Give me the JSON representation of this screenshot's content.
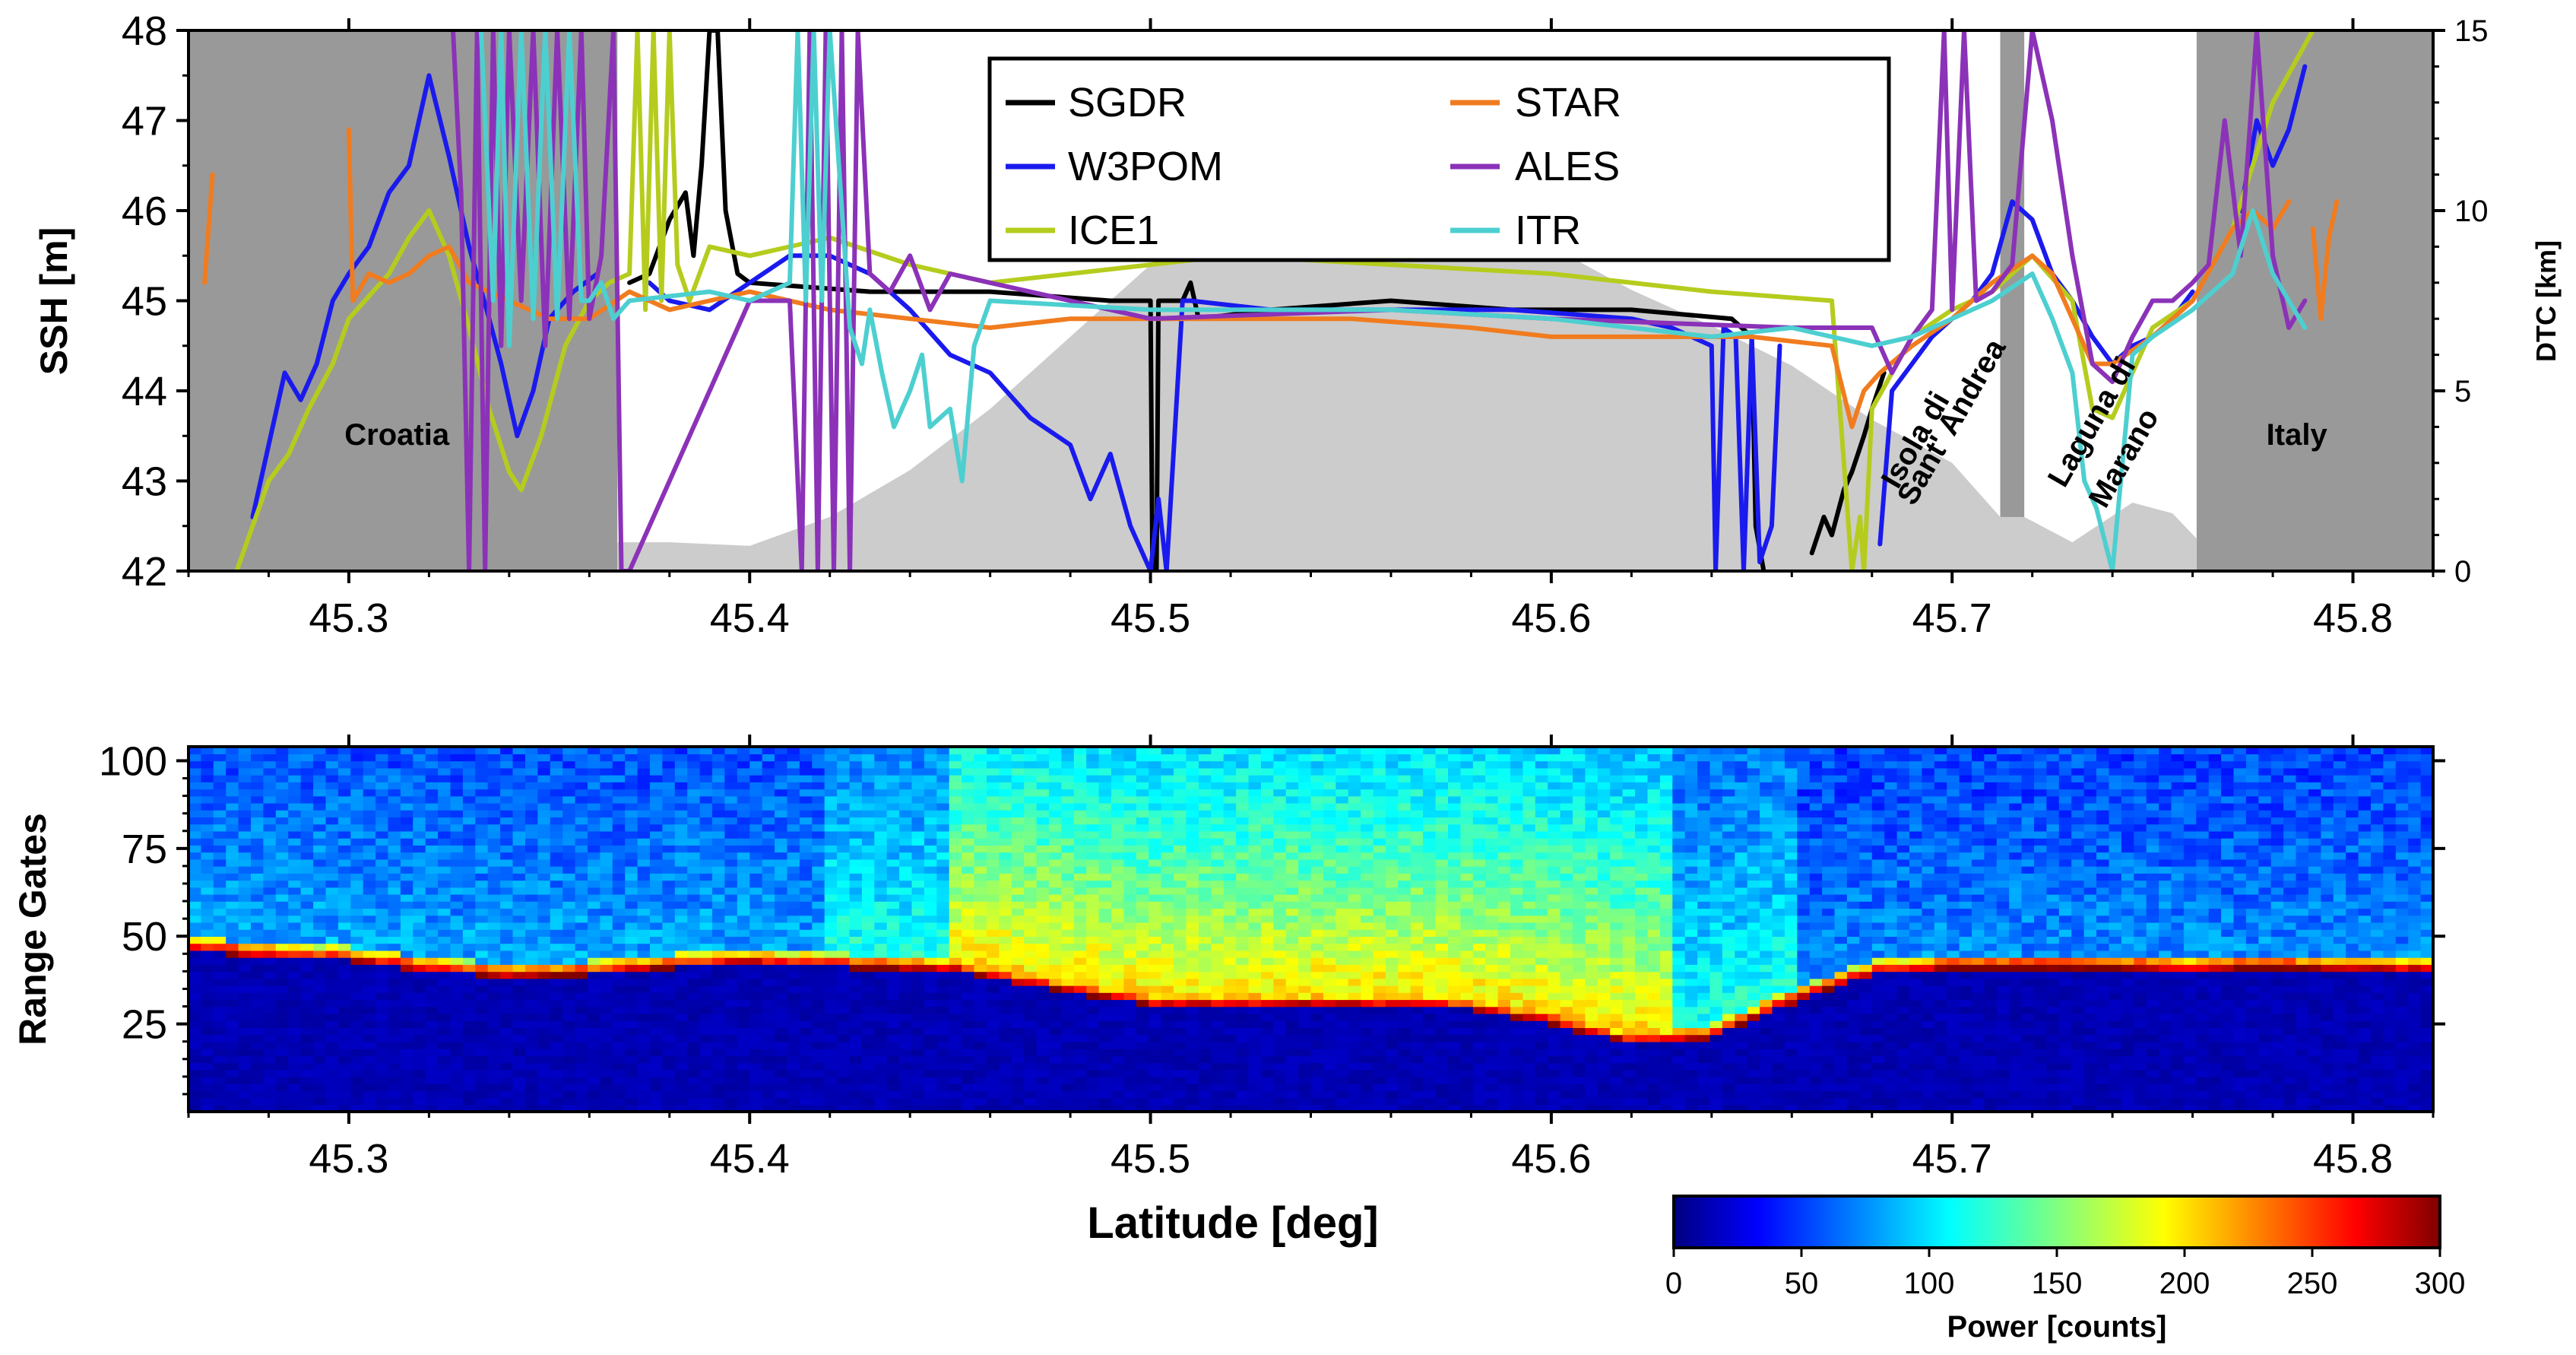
{
  "chart_data": [
    {
      "type": "line",
      "ylabel": "SSH [m]",
      "y2label": "DTC [km]",
      "xlim": [
        45.26,
        45.82
      ],
      "ylim": [
        42,
        48
      ],
      "y2lim": [
        0,
        15
      ],
      "xticks": [
        45.3,
        45.4,
        45.5,
        45.6,
        45.7,
        45.8
      ],
      "xtick_labels": [
        "45.3",
        "45.4",
        "45.5",
        "45.6",
        "45.7",
        "45.8"
      ],
      "yticks": [
        42,
        43,
        44,
        45,
        46,
        47,
        48
      ],
      "ytick_labels": [
        "42",
        "43",
        "44",
        "45",
        "46",
        "47",
        "48"
      ],
      "y2ticks": [
        0,
        5,
        10,
        15
      ],
      "y2tick_labels": [
        "0",
        "5",
        "10",
        "15"
      ],
      "legend_position": "top-center",
      "land_regions": [
        [
          45.26,
          45.367
        ],
        [
          45.712,
          45.718
        ],
        [
          45.761,
          45.82
        ]
      ],
      "annotations": [
        {
          "text": "Croatia",
          "x": 45.312,
          "y": 43.4,
          "rotate": 0
        },
        {
          "text": "Italy",
          "x": 45.786,
          "y": 43.4,
          "rotate": 0
        },
        {
          "text": "Isola di",
          "x": 45.693,
          "y": 43.4,
          "rotate": -60
        },
        {
          "text": "Sant' Andrea",
          "x": 45.702,
          "y": 43.6,
          "rotate": -60
        },
        {
          "text": "Laguna di",
          "x": 45.737,
          "y": 43.6,
          "rotate": -60
        },
        {
          "text": "Marano",
          "x": 45.745,
          "y": 43.2,
          "rotate": -60
        }
      ],
      "dtc": {
        "name": "DTC",
        "color": "#cccccc",
        "x": [
          45.367,
          45.38,
          45.4,
          45.42,
          45.44,
          45.46,
          45.48,
          45.5,
          45.52,
          45.54,
          45.55,
          45.56,
          45.58,
          45.6,
          45.62,
          45.64,
          45.66,
          45.68,
          45.7,
          45.712,
          45.718,
          45.73,
          45.745,
          45.755,
          45.761
        ],
        "values": [
          0.8,
          0.8,
          0.7,
          1.5,
          2.8,
          4.5,
          6.5,
          8.5,
          10.3,
          11.8,
          11.9,
          11.6,
          10.4,
          9.0,
          7.8,
          6.8,
          5.7,
          4.2,
          3.0,
          1.5,
          1.5,
          0.8,
          1.9,
          1.6,
          0.9
        ]
      },
      "series": [
        {
          "name": "SGDR",
          "color": "#000000",
          "x": [
            45.37,
            45.375,
            45.38,
            45.384,
            45.386,
            45.388,
            45.39,
            45.392,
            45.394,
            45.397,
            45.4,
            45.43,
            45.46,
            45.49,
            45.5,
            45.5005,
            45.5015,
            45.502,
            45.508,
            45.51,
            45.512,
            45.53,
            45.56,
            45.59,
            45.62,
            45.645,
            45.65,
            45.651,
            45.653,
            null,
            45.665,
            45.668,
            45.67,
            45.673,
            45.675,
            45.678,
            45.68,
            45.683
          ],
          "values": [
            45.2,
            45.3,
            45.9,
            46.2,
            45.5,
            46.5,
            48.0,
            48.0,
            46.0,
            45.3,
            45.2,
            45.1,
            45.1,
            45.0,
            45.0,
            42.0,
            42.0,
            45.0,
            45.0,
            45.2,
            44.8,
            44.9,
            45.0,
            44.9,
            44.9,
            44.8,
            44.6,
            42.5,
            42.0,
            null,
            42.2,
            42.6,
            42.4,
            42.9,
            43.1,
            43.5,
            43.8,
            44.2
          ]
        },
        {
          "name": "W3POM",
          "color": "#1a1aee",
          "x": [
            45.276,
            45.284,
            45.288,
            45.292,
            45.296,
            45.3,
            45.305,
            45.31,
            45.315,
            45.32,
            45.325,
            45.33,
            45.335,
            45.338,
            45.342,
            45.346,
            45.35,
            45.356,
            45.362,
            null,
            45.375,
            45.38,
            45.39,
            45.4,
            45.41,
            45.42,
            45.43,
            45.44,
            45.45,
            45.46,
            45.47,
            45.48,
            45.485,
            45.49,
            45.495,
            45.5,
            45.502,
            45.504,
            45.508,
            45.51,
            45.53,
            45.56,
            45.59,
            45.62,
            45.63,
            45.64,
            45.641,
            45.643,
            45.646,
            45.648,
            45.65,
            45.652,
            45.655,
            45.657,
            null,
            45.682,
            45.685,
            45.69,
            45.695,
            45.7,
            45.705,
            45.71,
            45.715,
            45.72,
            45.725,
            45.73,
            45.735,
            45.74,
            45.745,
            45.75,
            45.755,
            45.76,
            null,
            45.772,
            45.776,
            45.78,
            45.784,
            45.788
          ],
          "values": [
            42.6,
            44.2,
            43.9,
            44.3,
            45.0,
            45.3,
            45.6,
            46.2,
            46.5,
            47.5,
            46.6,
            45.6,
            44.8,
            44.3,
            43.5,
            44.0,
            44.8,
            45.1,
            45.3,
            null,
            45.2,
            45.0,
            44.9,
            45.2,
            45.5,
            45.5,
            45.3,
            44.9,
            44.4,
            44.2,
            43.7,
            43.4,
            42.8,
            43.3,
            42.5,
            42.0,
            42.8,
            42.0,
            45.0,
            45.0,
            44.9,
            44.9,
            44.9,
            44.8,
            44.7,
            44.5,
            42.0,
            44.7,
            44.6,
            42.0,
            44.6,
            42.1,
            42.5,
            44.5,
            null,
            42.3,
            44.0,
            44.3,
            44.6,
            44.8,
            45.0,
            45.3,
            46.1,
            45.9,
            45.3,
            45.0,
            44.6,
            44.3,
            44.5,
            44.6,
            44.8,
            45.1,
            null,
            46.0,
            47.0,
            46.5,
            46.9,
            47.6
          ]
        },
        {
          "name": "ICE1",
          "color": "#b5cc1e",
          "x": [
            45.272,
            45.28,
            45.285,
            45.29,
            45.296,
            45.3,
            45.31,
            45.315,
            45.32,
            45.325,
            45.33,
            45.335,
            45.34,
            45.343,
            45.348,
            45.354,
            45.36,
            45.365,
            45.37,
            45.372,
            45.374,
            45.376,
            45.378,
            45.38,
            45.382,
            45.385,
            45.39,
            45.4,
            45.42,
            45.44,
            45.46,
            45.48,
            45.5,
            45.52,
            45.56,
            45.6,
            45.64,
            45.67,
            45.675,
            45.677,
            45.678,
            45.68,
            45.685,
            45.69,
            45.7,
            45.71,
            45.72,
            45.73,
            45.735,
            45.74,
            45.75,
            45.76,
            45.77,
            45.78,
            45.79
          ],
          "values": [
            42.0,
            43.0,
            43.3,
            43.8,
            44.3,
            44.8,
            45.3,
            45.7,
            46.0,
            45.5,
            44.7,
            43.8,
            43.1,
            42.9,
            43.5,
            44.5,
            45.0,
            45.2,
            45.3,
            48.0,
            44.9,
            48.0,
            45.0,
            48.0,
            45.4,
            45.0,
            45.6,
            45.5,
            45.7,
            45.4,
            45.2,
            45.3,
            45.4,
            45.5,
            45.4,
            45.3,
            45.1,
            45.0,
            42.0,
            42.6,
            42.0,
            43.8,
            44.2,
            44.6,
            44.9,
            45.1,
            45.5,
            45.0,
            43.8,
            43.7,
            44.7,
            45.0,
            45.8,
            47.2,
            48.0
          ]
        },
        {
          "name": "STAR",
          "color": "#f07c1f",
          "x": [
            45.264,
            45.266,
            null,
            45.3,
            45.301,
            45.305,
            45.31,
            45.315,
            45.32,
            45.325,
            45.33,
            45.34,
            45.35,
            45.36,
            45.37,
            45.38,
            45.39,
            45.4,
            45.42,
            45.44,
            45.46,
            45.48,
            45.5,
            45.52,
            45.55,
            45.58,
            45.6,
            45.62,
            45.65,
            45.67,
            45.675,
            45.678,
            45.682,
            45.69,
            45.7,
            45.71,
            45.72,
            45.725,
            45.73,
            45.735,
            45.74,
            45.75,
            45.76,
            45.77,
            45.775,
            45.78,
            45.784,
            null,
            45.79,
            45.792,
            45.794,
            45.796
          ],
          "values": [
            45.2,
            46.4,
            null,
            46.9,
            45.0,
            45.3,
            45.2,
            45.3,
            45.5,
            45.6,
            45.2,
            45.0,
            44.8,
            44.8,
            45.1,
            44.9,
            45.0,
            45.1,
            44.9,
            44.8,
            44.7,
            44.8,
            44.8,
            44.8,
            44.8,
            44.7,
            44.6,
            44.6,
            44.6,
            44.5,
            43.6,
            44.0,
            44.2,
            44.5,
            44.8,
            45.2,
            45.5,
            45.3,
            44.8,
            44.3,
            44.3,
            44.6,
            45.0,
            45.8,
            46.0,
            45.8,
            46.1,
            null,
            45.8,
            44.8,
            45.7,
            46.1
          ]
        },
        {
          "name": "ALES",
          "color": "#8b32b8",
          "x": [
            45.326,
            45.328,
            45.33,
            45.332,
            45.334,
            45.336,
            45.338,
            45.34,
            45.343,
            45.346,
            45.349,
            45.352,
            45.355,
            45.358,
            45.36,
            45.363,
            45.366,
            45.368,
            45.37,
            45.4,
            45.41,
            45.413,
            45.415,
            45.417,
            45.419,
            45.421,
            45.423,
            45.425,
            45.427,
            45.43,
            45.435,
            45.44,
            45.445,
            45.45,
            45.5,
            45.56,
            45.6,
            45.66,
            45.68,
            45.685,
            45.69,
            45.695,
            45.698,
            45.7,
            45.703,
            45.706,
            45.71,
            45.715,
            45.72,
            45.725,
            45.73,
            45.735,
            45.74,
            45.745,
            45.75,
            45.755,
            45.76,
            45.764,
            45.768,
            45.772,
            45.776,
            45.78,
            45.784,
            45.788
          ],
          "values": [
            48.0,
            46.2,
            42.0,
            48.0,
            42.0,
            48.0,
            44.5,
            48.0,
            45.0,
            48.0,
            44.5,
            48.0,
            44.8,
            48.0,
            44.8,
            45.5,
            48.0,
            42.0,
            42.0,
            45.0,
            45.0,
            42.0,
            48.0,
            42.0,
            48.0,
            42.0,
            48.0,
            42.0,
            48.0,
            45.3,
            45.1,
            45.5,
            44.9,
            45.3,
            44.8,
            44.9,
            44.8,
            44.7,
            44.7,
            44.2,
            44.6,
            44.9,
            48.0,
            44.9,
            48.0,
            45.0,
            45.1,
            45.4,
            48.0,
            47.0,
            45.5,
            44.3,
            44.1,
            44.6,
            45.0,
            45.0,
            45.2,
            45.4,
            47.0,
            45.5,
            48.0,
            45.5,
            44.7,
            45.0
          ]
        },
        {
          "name": "ITR",
          "color": "#4dcfd0",
          "x": [
            45.333,
            45.336,
            45.338,
            45.34,
            45.343,
            45.346,
            45.349,
            45.352,
            45.355,
            45.358,
            45.36,
            45.363,
            45.366,
            45.37,
            45.39,
            45.4,
            45.41,
            45.412,
            45.414,
            45.416,
            45.418,
            45.42,
            45.425,
            45.428,
            45.43,
            45.433,
            45.436,
            45.44,
            45.443,
            45.445,
            45.45,
            45.453,
            45.456,
            45.46,
            45.5,
            45.56,
            45.6,
            45.64,
            45.66,
            45.68,
            45.69,
            45.7,
            45.71,
            45.72,
            45.725,
            45.73,
            45.733,
            45.736,
            45.74,
            45.745,
            45.75,
            45.76,
            45.77,
            45.775,
            45.78,
            45.784,
            45.788
          ],
          "values": [
            48.0,
            45.0,
            48.0,
            44.5,
            48.0,
            44.8,
            48.0,
            44.8,
            48.0,
            45.0,
            45.0,
            45.2,
            44.8,
            45.0,
            45.1,
            45.0,
            45.2,
            48.0,
            45.0,
            48.0,
            45.0,
            48.0,
            44.7,
            44.3,
            44.9,
            44.2,
            43.6,
            44.0,
            44.4,
            43.6,
            43.8,
            43.0,
            44.5,
            45.0,
            44.9,
            44.9,
            44.8,
            44.6,
            44.7,
            44.5,
            44.6,
            44.8,
            45.0,
            45.3,
            44.8,
            44.2,
            43.0,
            42.7,
            42.0,
            44.4,
            44.6,
            44.9,
            45.3,
            46.0,
            45.3,
            45.0,
            44.7
          ]
        }
      ]
    },
    {
      "type": "heatmap",
      "ylabel": "Range Gates",
      "xlabel": "Latitude [deg]",
      "xlim": [
        45.26,
        45.82
      ],
      "ylim": [
        0,
        104
      ],
      "xticks": [
        45.3,
        45.4,
        45.5,
        45.6,
        45.7,
        45.8
      ],
      "xtick_labels": [
        "45.3",
        "45.4",
        "45.5",
        "45.6",
        "45.7",
        "45.8"
      ],
      "yticks": [
        25,
        50,
        75,
        100
      ],
      "ytick_labels": [
        "25",
        "50",
        "75",
        "100"
      ],
      "colorbar": {
        "label": "Power [counts]",
        "range": [
          0,
          300
        ],
        "ticks": [
          0,
          50,
          100,
          150,
          200,
          250,
          300
        ],
        "tick_labels": [
          "0",
          "50",
          "100",
          "150",
          "200",
          "250",
          "300"
        ],
        "colormap": "jet"
      },
      "leading_edge": {
        "x": [
          45.26,
          45.28,
          45.3,
          45.32,
          45.34,
          45.36,
          45.38,
          45.4,
          45.45,
          45.5,
          45.55,
          45.58,
          45.6,
          45.62,
          45.64,
          45.66,
          45.68,
          45.7,
          45.72,
          45.74,
          45.76,
          45.78,
          45.8,
          45.82
        ],
        "gate": [
          47,
          45,
          44,
          41,
          39,
          40,
          42,
          43,
          41,
          31,
          31,
          30,
          26,
          20,
          22,
          32,
          40,
          42,
          42,
          42,
          41,
          42,
          41,
          41
        ]
      },
      "bright_bands": [
        [
          45.45,
          45.52
        ],
        [
          45.52,
          45.63
        ]
      ]
    }
  ]
}
